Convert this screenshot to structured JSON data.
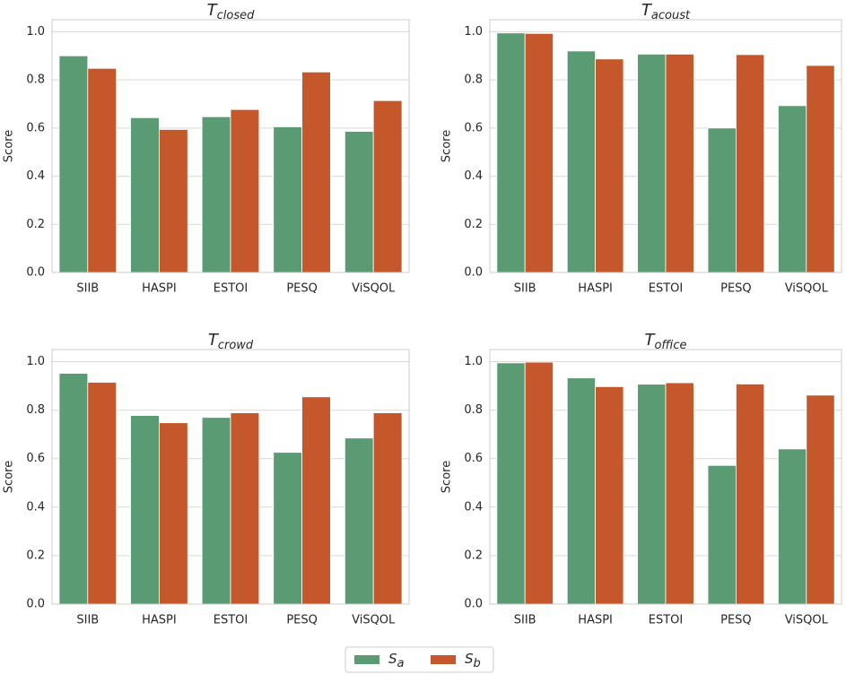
{
  "legend": [
    {
      "name": {
        "main": "S",
        "subscript": "a"
      },
      "color": "#5a9b73"
    },
    {
      "name": {
        "main": "S",
        "subscript": "b"
      },
      "color": "#c5582a"
    }
  ],
  "chart_data": [
    {
      "type": "bar",
      "title": {
        "main": "T",
        "subscript": "closed"
      },
      "y_label": "Score",
      "categories": [
        "SIIB",
        "HASPI",
        "ESTOI",
        "PESQ",
        "ViSQOL"
      ],
      "series": [
        {
          "values": [
            0.9,
            0.643,
            0.647,
            0.605,
            0.586
          ]
        },
        {
          "values": [
            0.848,
            0.594,
            0.677,
            0.833,
            0.714
          ]
        }
      ],
      "ylim": [
        0,
        1.05
      ],
      "yticks": [
        {
          "value": 0,
          "label": "0.0"
        },
        0.2,
        0.4,
        0.6,
        0.8,
        {
          "value": 1,
          "label": "1.0"
        }
      ],
      "grid": true
    },
    {
      "type": "bar",
      "title": {
        "main": "T",
        "subscript": "acoust"
      },
      "y_label": "Score",
      "categories": [
        "SIIB",
        "HASPI",
        "ESTOI",
        "PESQ",
        "ViSQOL"
      ],
      "series": [
        {
          "values": [
            0.995,
            0.92,
            0.907,
            0.6,
            0.693
          ]
        },
        {
          "values": [
            0.993,
            0.887,
            0.907,
            0.905,
            0.86
          ]
        }
      ],
      "ylim": [
        0,
        1.05
      ],
      "yticks": [
        {
          "value": 0,
          "label": "0.0"
        },
        0.2,
        0.4,
        0.6,
        0.8,
        {
          "value": 1,
          "label": "1.0"
        }
      ],
      "grid": true
    },
    {
      "type": "bar",
      "title": {
        "main": "T",
        "subscript": "crowd"
      },
      "y_label": "Score",
      "categories": [
        "SIIB",
        "HASPI",
        "ESTOI",
        "PESQ",
        "ViSQOL"
      ],
      "series": [
        {
          "values": [
            0.952,
            0.778,
            0.77,
            0.626,
            0.685
          ]
        },
        {
          "values": [
            0.915,
            0.748,
            0.789,
            0.855,
            0.789
          ]
        }
      ],
      "ylim": [
        0,
        1.05
      ],
      "yticks": [
        {
          "value": 0,
          "label": "0.0"
        },
        0.2,
        0.4,
        0.6,
        0.8,
        {
          "value": 1,
          "label": "1.0"
        }
      ],
      "grid": true
    },
    {
      "type": "bar",
      "title": {
        "main": "T",
        "subscript": "office"
      },
      "y_label": "Score",
      "categories": [
        "SIIB",
        "HASPI",
        "ESTOI",
        "PESQ",
        "ViSQOL"
      ],
      "series": [
        {
          "values": [
            0.995,
            0.933,
            0.907,
            0.572,
            0.64
          ]
        },
        {
          "values": [
            0.998,
            0.897,
            0.913,
            0.908,
            0.862
          ]
        }
      ],
      "ylim": [
        0,
        1.05
      ],
      "yticks": [
        {
          "value": 0,
          "label": "0.0"
        },
        0.2,
        0.4,
        0.6,
        0.8,
        {
          "value": 1,
          "label": "1.0"
        }
      ],
      "grid": true
    }
  ]
}
